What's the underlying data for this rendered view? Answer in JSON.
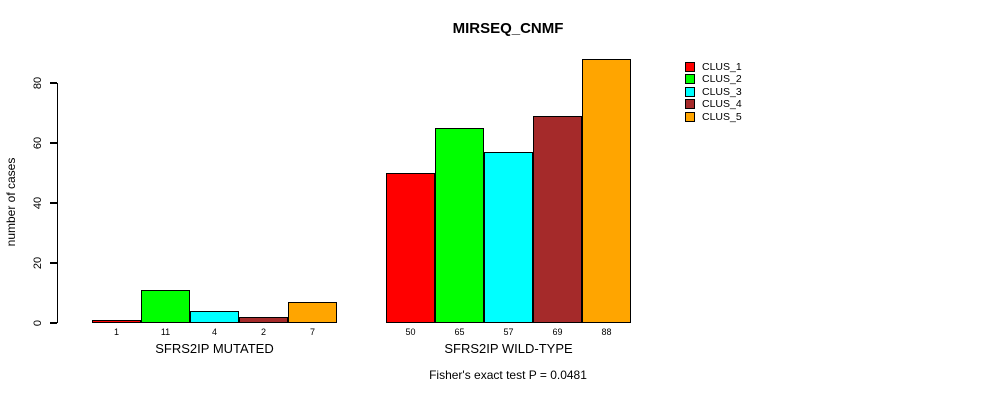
{
  "title": "MIRSEQ_CNMF",
  "caption": "Fisher's exact test P = 0.0481",
  "y_axis": {
    "label": "number of cases",
    "ticks": [
      0,
      20,
      40,
      60,
      80
    ]
  },
  "legend": {
    "items": [
      {
        "label": "CLUS_1",
        "color": "#FF0000"
      },
      {
        "label": "CLUS_2",
        "color": "#00FF00"
      },
      {
        "label": "CLUS_3",
        "color": "#00FFFF"
      },
      {
        "label": "CLUS_4",
        "color": "#A52A2A"
      },
      {
        "label": "CLUS_5",
        "color": "#FFA500"
      }
    ]
  },
  "chart_data": {
    "type": "bar",
    "title": "MIRSEQ_CNMF",
    "ylabel": "number of cases",
    "ylim": [
      0,
      88
    ],
    "yticks": [
      0,
      20,
      40,
      60,
      80
    ],
    "grid": false,
    "legend_position": "top-right",
    "bar_value_labels": true,
    "categories": [
      "SFRS2IP MUTATED",
      "SFRS2IP WILD-TYPE"
    ],
    "series": [
      {
        "name": "CLUS_1",
        "color": "#FF0000",
        "values": [
          1,
          50
        ]
      },
      {
        "name": "CLUS_2",
        "color": "#00FF00",
        "values": [
          11,
          65
        ]
      },
      {
        "name": "CLUS_3",
        "color": "#00FFFF",
        "values": [
          4,
          57
        ]
      },
      {
        "name": "CLUS_4",
        "color": "#A52A2A",
        "values": [
          2,
          69
        ]
      },
      {
        "name": "CLUS_5",
        "color": "#FFA500",
        "values": [
          7,
          88
        ]
      }
    ],
    "annotation": "Fisher's exact test P = 0.0481"
  }
}
